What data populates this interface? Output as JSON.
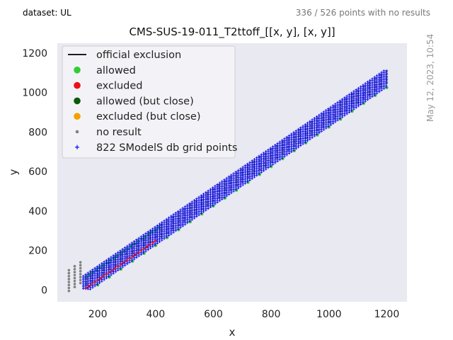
{
  "header": {
    "dataset_label": "dataset: UL",
    "points_note": "336 / 526 points with no results",
    "date_stamp": "May 12, 2023, 10:54"
  },
  "colors": {
    "plot_bg": "#e9e9f2",
    "official": "#000000",
    "allowed": "#33cc33",
    "excluded": "#ee1111",
    "allowed_close": "#0a5c0a",
    "excluded_close": "#f5a000",
    "no_result": "#808080",
    "grid_points": "#0000ee"
  },
  "chart_data": {
    "type": "scatter",
    "title": "CMS-SUS-19-011_T2ttoff_[[x, y], [x, y]]",
    "xlabel": "x",
    "ylabel": "y",
    "xlim": [
      60,
      1270
    ],
    "ylim": [
      -60,
      1250
    ],
    "xticks": [
      200,
      400,
      600,
      800,
      1000,
      1200
    ],
    "yticks": [
      0,
      200,
      400,
      600,
      800,
      1000,
      1200
    ],
    "grid": false,
    "legend_position": "top-left",
    "legend": [
      {
        "label": "official exclusion",
        "marker": "line",
        "color": "#000000"
      },
      {
        "label": "allowed",
        "marker": "circle",
        "color": "#33cc33"
      },
      {
        "label": "excluded",
        "marker": "circle",
        "color": "#ee1111"
      },
      {
        "label": "allowed (but close)",
        "marker": "circle",
        "color": "#0a5c0a"
      },
      {
        "label": "excluded (but close)",
        "marker": "circle",
        "color": "#f5a000"
      },
      {
        "label": "no result",
        "marker": "dot",
        "color": "#808080"
      },
      {
        "label": "822 SModelS db grid points",
        "marker": "plus",
        "color": "#0000ee"
      }
    ],
    "band": {
      "description_x_range": [
        150,
        1200
      ],
      "grid_lower_offset": [
        150,
        50
      ],
      "grid_upper_offset": [
        100,
        100
      ],
      "no_result_lower_offset": [
        150,
        30
      ],
      "no_result_upper_offset": [
        0,
        150
      ]
    }
  }
}
